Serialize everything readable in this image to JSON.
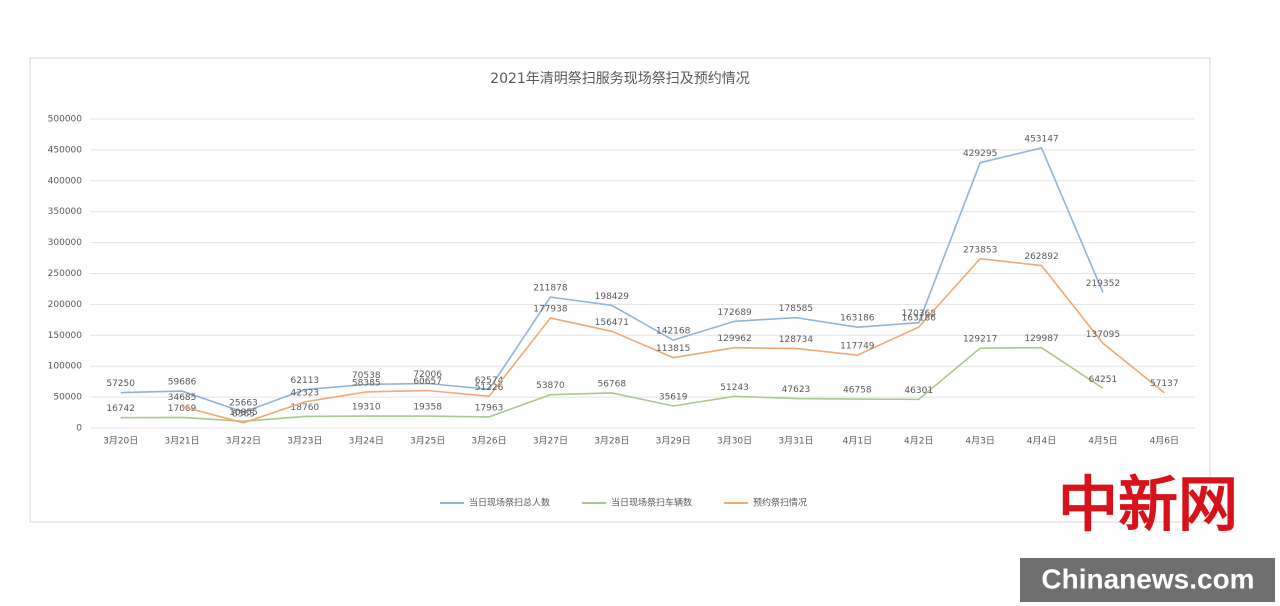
{
  "chart_data": {
    "type": "line",
    "title": "2021年清明祭扫服务现场祭扫及预约情况",
    "categories": [
      "3月20日",
      "3月21日",
      "3月22日",
      "3月23日",
      "3月24日",
      "3月25日",
      "3月26日",
      "3月27日",
      "3月28日",
      "3月29日",
      "3月30日",
      "3月31日",
      "4月1日",
      "4月2日",
      "4月3日",
      "4月4日",
      "4月5日",
      "4月6日"
    ],
    "series": [
      {
        "name": "当日现场祭扫总人数",
        "color": "#8fb4d9",
        "values": [
          57250,
          59686,
          25663,
          62113,
          70538,
          72006,
          62574,
          211878,
          198429,
          142168,
          172689,
          178585,
          163186,
          170368,
          429295,
          453147,
          219352,
          null
        ]
      },
      {
        "name": "当日现场祭扫车辆数",
        "color": "#a9c98d",
        "values": [
          16742,
          17069,
          10855,
          18760,
          19310,
          19358,
          17963,
          53870,
          56768,
          35619,
          51243,
          47623,
          46758,
          46301,
          129217,
          129987,
          64251,
          null
        ]
      },
      {
        "name": "预约祭扫情况",
        "color": "#f1a873",
        "values": [
          null,
          34685,
          8365,
          42323,
          58385,
          60657,
          51226,
          177938,
          156471,
          113815,
          129962,
          128734,
          117749,
          163186,
          273853,
          262892,
          137095,
          57137
        ]
      }
    ],
    "ylim": [
      0,
      500000
    ],
    "yticks": [
      0,
      50000,
      100000,
      150000,
      200000,
      250000,
      300000,
      350000,
      400000,
      450000,
      500000
    ],
    "grid": true,
    "legend": "bottom"
  },
  "watermark": {
    "logo": "中新网",
    "site": "Chinanews.com"
  }
}
